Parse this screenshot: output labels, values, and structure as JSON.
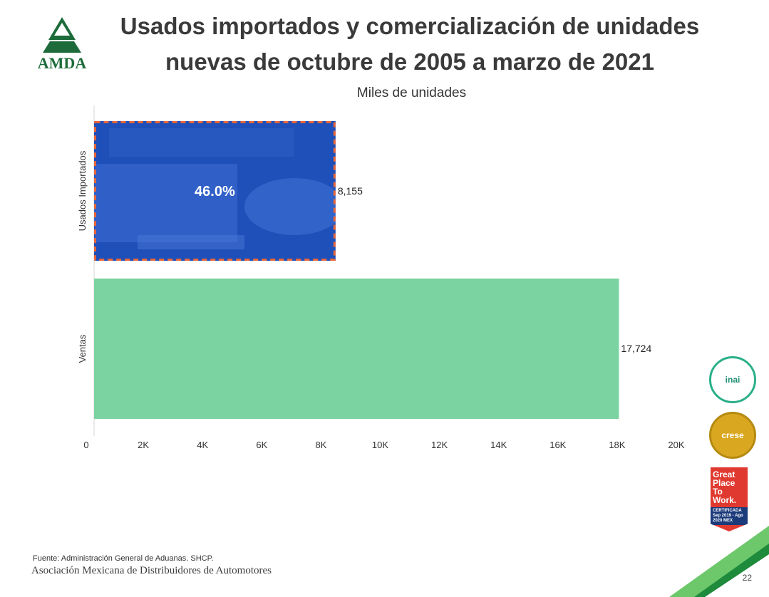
{
  "header": {
    "logo_text": "AMDA",
    "title_line1": "Usados importados y comercialización de unidades",
    "title_line2": "nuevas de octubre de 2005 a marzo de 2021"
  },
  "chart_data": {
    "type": "bar",
    "orientation": "horizontal",
    "title": "Miles de unidades",
    "categories": [
      "Usados Importados",
      "Ventas"
    ],
    "values": [
      8155,
      17724
    ],
    "value_labels": [
      "8,155",
      "17,724"
    ],
    "highlight_annotation": "46.0%",
    "xlim": [
      0,
      20000
    ],
    "xticks": [
      0,
      2000,
      4000,
      6000,
      8000,
      10000,
      12000,
      14000,
      16000,
      18000,
      20000
    ],
    "xtick_labels": [
      "0",
      "2K",
      "4K",
      "6K",
      "8K",
      "10K",
      "12K",
      "14K",
      "16K",
      "18K",
      "20K"
    ],
    "colors": [
      "#1f4fb8",
      "#7cd3a2"
    ],
    "highlight_border": "#e8663a",
    "grid": false
  },
  "badges": {
    "inai": "inai",
    "crese": "crese",
    "gptw_lines": [
      "Great",
      "Place",
      "To",
      "Work."
    ],
    "gptw_band": "CERTIFICADA Sep 2019 - Ago 2020 MEX"
  },
  "footer": {
    "source": "Fuente: Administración General de Aduanas. SHCP.",
    "association": "Asociación Mexicana de Distribuidores de Automotores",
    "page_number": "22"
  },
  "colors": {
    "title": "#3a3a3a",
    "corner_green_dark": "#1e8a3c",
    "corner_green_light": "#6cc86a"
  }
}
